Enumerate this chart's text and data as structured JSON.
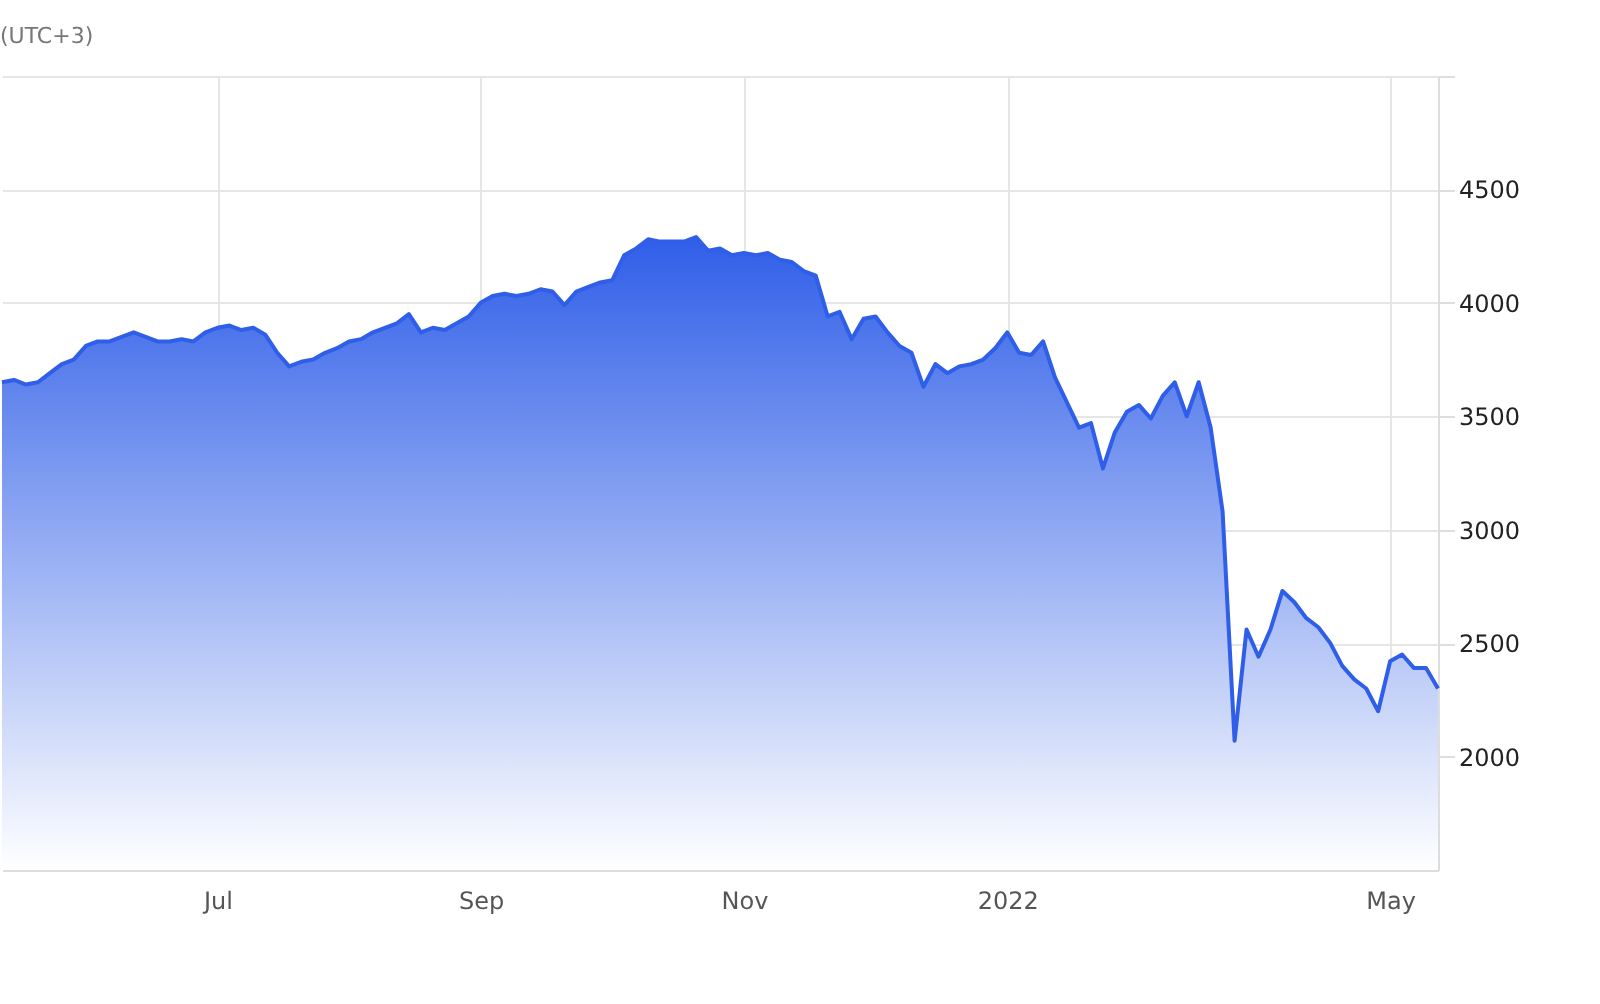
{
  "chart_data": {
    "type": "area",
    "title": "(UTC+3)",
    "categories": [
      null,
      null,
      null,
      null,
      null,
      null,
      null,
      null,
      null,
      null,
      null,
      null,
      null,
      null,
      null,
      null,
      null,
      null,
      "Jul",
      null,
      null,
      null,
      null,
      null,
      null,
      null,
      null,
      null,
      null,
      null,
      null,
      null,
      null,
      null,
      null,
      null,
      null,
      null,
      null,
      null,
      "Sep",
      null,
      null,
      null,
      null,
      null,
      null,
      null,
      null,
      null,
      null,
      null,
      null,
      null,
      null,
      null,
      null,
      null,
      null,
      null,
      null,
      null,
      "Nov",
      null,
      null,
      null,
      null,
      null,
      null,
      null,
      null,
      null,
      null,
      null,
      null,
      null,
      null,
      null,
      null,
      null,
      null,
      null,
      null,
      null,
      "2022",
      null,
      null,
      null,
      null,
      null,
      null,
      null,
      null,
      null,
      null,
      null,
      null,
      null,
      null,
      null,
      null,
      null,
      null,
      null,
      null,
      null,
      null,
      null,
      null,
      null,
      null,
      null,
      null,
      null,
      null,
      null,
      "May",
      null,
      null,
      null,
      null
    ],
    "series": [
      {
        "color": "#2f5ee8",
        "values": [
          3650,
          3660,
          3640,
          3650,
          3690,
          3730,
          3750,
          3810,
          3830,
          3830,
          3850,
          3870,
          3850,
          3830,
          3830,
          3840,
          3830,
          3870,
          3890,
          3900,
          3880,
          3890,
          3860,
          3780,
          3720,
          3740,
          3750,
          3780,
          3800,
          3830,
          3840,
          3870,
          3890,
          3910,
          3950,
          3870,
          3890,
          3880,
          3910,
          3940,
          4000,
          4030,
          4040,
          4030,
          4040,
          4060,
          4050,
          3990,
          4050,
          4070,
          4090,
          4100,
          4210,
          4240,
          4280,
          4270,
          4270,
          4270,
          4290,
          4230,
          4240,
          4210,
          4220,
          4210,
          4220,
          4190,
          4180,
          4140,
          4120,
          3940,
          3960,
          3840,
          3930,
          3940,
          3870,
          3810,
          3780,
          3630,
          3730,
          3690,
          3720,
          3730,
          3750,
          3800,
          3870,
          3780,
          3770,
          3830,
          3670,
          3560,
          3450,
          3470,
          3270,
          3430,
          3520,
          3550,
          3490,
          3590,
          3650,
          3500,
          3650,
          3450,
          3080,
          2070,
          2560,
          2440,
          2560,
          2730,
          2680,
          2610,
          2570,
          2500,
          2400,
          2340,
          2300,
          2200,
          2420,
          2450,
          2390,
          2390,
          2300
        ]
      }
    ],
    "ylim": [
      1500,
      5000
    ],
    "yticks": [
      2000,
      2500,
      3000,
      3500,
      4000,
      4500,
      {
        "value": 5000,
        "label": null
      }
    ],
    "grid": true
  }
}
